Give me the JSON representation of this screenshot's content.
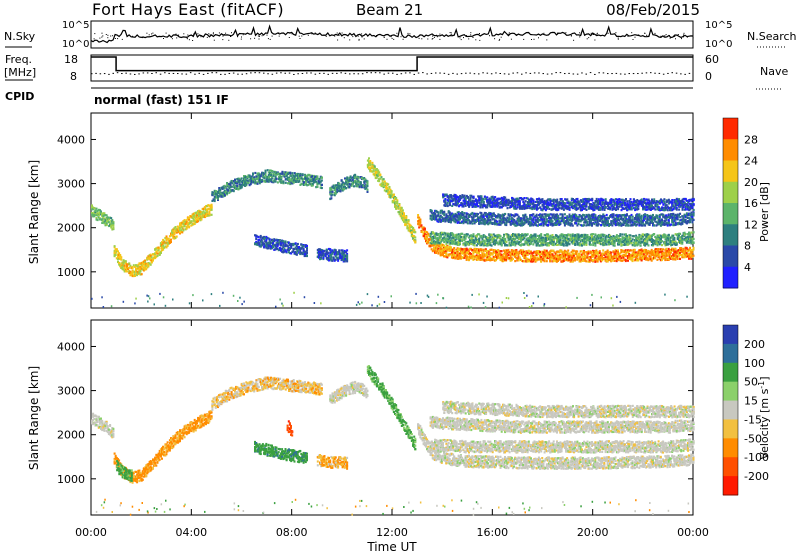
{
  "header": {
    "station": "Fort Hays East (fitACF)",
    "beam": "Beam 21",
    "date": "08/Feb/2015"
  },
  "params": {
    "nsky_label": "N.Sky",
    "nsearch_label": "N.Search",
    "freq_label": "Freq.",
    "freq_unit": "[MHz]",
    "nave_label": "Nave",
    "cpid_label": "CPID",
    "noise_ticks": [
      "10^5",
      "10^0"
    ],
    "freq_ticks": [
      "18",
      "8"
    ],
    "nave_ticks": [
      "60",
      "0"
    ],
    "cpid_text": "normal (fast) 151 IF",
    "freq_step": {
      "high_mhz": 18,
      "low_mhz": 10,
      "low_from_ut": 1.0,
      "low_until_ut": 13.0
    }
  },
  "axes": {
    "x_ticks": [
      "00:00",
      "04:00",
      "08:00",
      "12:00",
      "16:00",
      "20:00",
      "00:00"
    ],
    "x_range_hours": [
      0,
      24
    ],
    "xlabel": "Time UT",
    "y_range_km": [
      180,
      4600
    ],
    "y_ticks": [
      "1000",
      "2000",
      "3000",
      "4000"
    ],
    "ylabel": "Slant Range [km]"
  },
  "power_scale": {
    "label": "Power [dB]",
    "ticks": [
      "4",
      "8",
      "12",
      "16",
      "20",
      "24",
      "28"
    ],
    "colors": [
      "#2020ff",
      "#2a49a8",
      "#2e7f7f",
      "#5cb46a",
      "#9ed04a",
      "#f5c518",
      "#ff8c00",
      "#ff2a00"
    ]
  },
  "velocity_scale": {
    "label": "Velocity [m s",
    "label_exp": "-1",
    "label_close": "]",
    "ticks": [
      "200",
      "100",
      "50",
      "15",
      "-15",
      "-50",
      "-100",
      "-200"
    ],
    "colors": [
      "#2a3fb0",
      "#2e6f9a",
      "#3aa040",
      "#8bd06a",
      "#c8c8c0",
      "#f2c040",
      "#ff8c00",
      "#ff5000",
      "#ff1a00"
    ]
  },
  "chart_data": [
    {
      "type": "heatmap",
      "title": "",
      "parameter": "Power [dB]",
      "xlabel": "Time UT",
      "ylabel": "Slant Range [km]",
      "xlim": [
        0,
        24
      ],
      "ylim": [
        180,
        4600
      ],
      "colorbar_range": [
        0,
        30
      ],
      "series": [
        {
          "x": [
            0.0,
            0.3,
            0.7,
            0.9
          ],
          "y": [
            2400,
            2300,
            2150,
            2050
          ],
          "value": 14
        },
        {
          "x": [
            0.9,
            1.2,
            1.6,
            2.0,
            2.4,
            2.8,
            3.2,
            3.6,
            4.0,
            4.4,
            4.8
          ],
          "y": [
            1500,
            1200,
            1050,
            1100,
            1350,
            1600,
            1850,
            2050,
            2200,
            2350,
            2450
          ],
          "value": 20
        },
        {
          "x": [
            4.8,
            5.5,
            6.2,
            7.0,
            7.8,
            8.6,
            9.2
          ],
          "y": [
            2700,
            2950,
            3100,
            3200,
            3150,
            3100,
            3050
          ],
          "value": 10
        },
        {
          "x": [
            9.5,
            10.0,
            10.5,
            10.8,
            11.0
          ],
          "y": [
            2800,
            3000,
            3100,
            3050,
            2950
          ],
          "value": 10
        },
        {
          "x": [
            6.5,
            7.2,
            8.0,
            8.6
          ],
          "y": [
            1750,
            1650,
            1550,
            1500
          ],
          "value": 6
        },
        {
          "x": [
            9.0,
            9.6,
            10.2
          ],
          "y": [
            1450,
            1400,
            1380
          ],
          "value": 6
        },
        {
          "x": [
            11.0,
            11.4,
            11.8,
            12.2,
            12.6,
            12.9
          ],
          "y": [
            3500,
            3200,
            2900,
            2500,
            2100,
            1800
          ],
          "value": 18
        },
        {
          "x": [
            13.0,
            13.3,
            13.6,
            14.0,
            14.5,
            15.0,
            16.0,
            17.0,
            18.0,
            19.0,
            20.0,
            21.0,
            22.0,
            23.0,
            24.0
          ],
          "y": [
            2200,
            1850,
            1600,
            1500,
            1450,
            1420,
            1400,
            1390,
            1380,
            1380,
            1380,
            1390,
            1400,
            1420,
            1450
          ],
          "value": 24
        },
        {
          "x": [
            13.5,
            15.0,
            17.0,
            19.0,
            21.0,
            23.0,
            24.0
          ],
          "y": [
            1800,
            1750,
            1750,
            1750,
            1750,
            1750,
            1800
          ],
          "value": 12
        },
        {
          "x": [
            13.5,
            15.0,
            17.0,
            19.0,
            21.0,
            23.0,
            24.0
          ],
          "y": [
            2300,
            2250,
            2200,
            2200,
            2200,
            2200,
            2250
          ],
          "value": 7
        },
        {
          "x": [
            14.0,
            16.0,
            18.0,
            20.0,
            22.0,
            24.0
          ],
          "y": [
            2650,
            2600,
            2550,
            2550,
            2550,
            2550
          ],
          "value": 5
        }
      ]
    },
    {
      "type": "heatmap",
      "title": "",
      "parameter": "Velocity [m s-1]",
      "xlabel": "Time UT",
      "ylabel": "Slant Range [km]",
      "xlim": [
        0,
        24
      ],
      "ylim": [
        180,
        4600
      ],
      "colorbar_range": [
        -200,
        200
      ],
      "series": [
        {
          "x": [
            0.0,
            0.3,
            0.7,
            0.9
          ],
          "y": [
            2400,
            2300,
            2150,
            2050
          ],
          "value": 0
        },
        {
          "x": [
            0.9,
            1.2,
            1.6,
            2.0,
            2.4,
            2.8,
            3.2,
            3.6,
            4.0,
            4.4,
            4.8
          ],
          "y": [
            1500,
            1200,
            1050,
            1100,
            1350,
            1600,
            1850,
            2050,
            2200,
            2350,
            2450
          ],
          "value": -40
        },
        {
          "x": [
            1.0,
            1.3,
            1.6
          ],
          "y": [
            1300,
            1150,
            1100
          ],
          "value": 40
        },
        {
          "x": [
            4.8,
            5.5,
            6.2,
            7.0,
            7.8,
            8.6,
            9.2
          ],
          "y": [
            2700,
            2950,
            3100,
            3200,
            3150,
            3100,
            3050
          ],
          "value": -20
        },
        {
          "x": [
            9.5,
            10.0,
            10.5,
            10.8,
            11.0
          ],
          "y": [
            2800,
            3000,
            3100,
            3050,
            2950
          ],
          "value": 0
        },
        {
          "x": [
            6.5,
            7.2,
            8.0,
            8.6
          ],
          "y": [
            1750,
            1650,
            1550,
            1500
          ],
          "value": 60
        },
        {
          "x": [
            9.0,
            9.6,
            10.2
          ],
          "y": [
            1450,
            1400,
            1380
          ],
          "value": -30
        },
        {
          "x": [
            7.8,
            7.9,
            8.0
          ],
          "y": [
            2250,
            2150,
            2050
          ],
          "value": -150
        },
        {
          "x": [
            11.0,
            11.4,
            11.8,
            12.2,
            12.6,
            12.9
          ],
          "y": [
            3500,
            3200,
            2900,
            2500,
            2100,
            1800
          ],
          "value": 40
        },
        {
          "x": [
            13.0,
            13.3,
            13.6,
            14.0,
            14.5,
            15.0,
            16.0,
            17.0,
            18.0,
            19.0,
            20.0,
            21.0,
            22.0,
            23.0,
            24.0
          ],
          "y": [
            2200,
            1850,
            1600,
            1500,
            1450,
            1420,
            1400,
            1390,
            1380,
            1380,
            1380,
            1390,
            1400,
            1420,
            1450
          ],
          "value": 0
        },
        {
          "x": [
            13.5,
            15.0,
            17.0,
            19.0,
            21.0,
            23.0,
            24.0
          ],
          "y": [
            1800,
            1750,
            1750,
            1750,
            1750,
            1750,
            1800
          ],
          "value": 0
        },
        {
          "x": [
            13.5,
            15.0,
            17.0,
            19.0,
            21.0,
            23.0,
            24.0
          ],
          "y": [
            2300,
            2250,
            2200,
            2200,
            2200,
            2200,
            2250
          ],
          "value": 0
        },
        {
          "x": [
            14.0,
            16.0,
            18.0,
            20.0,
            22.0,
            24.0
          ],
          "y": [
            2650,
            2600,
            2550,
            2550,
            2550,
            2550
          ],
          "value": 0
        }
      ]
    }
  ]
}
